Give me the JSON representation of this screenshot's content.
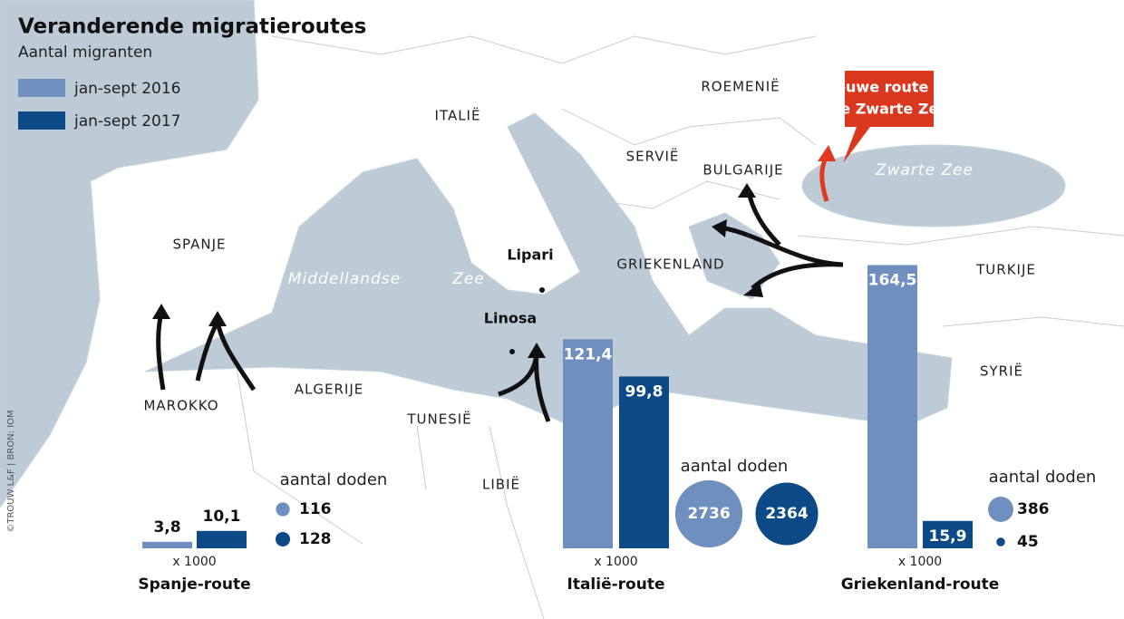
{
  "title": "Veranderende migratieroutes",
  "subtitle": "Aantal migranten",
  "legend": [
    {
      "label": "jan-sept 2016",
      "color": "#6f8fbf"
    },
    {
      "label": "jan-sept 2017",
      "color": "#0b4a87"
    }
  ],
  "deaths_label": "aantal doden",
  "unit_label": "x 1000",
  "routes": [
    {
      "name": "Spanje-route",
      "values": [
        3.8,
        10.1
      ],
      "value_labels": [
        "3,8",
        "10,1"
      ],
      "deaths": [
        116,
        128
      ]
    },
    {
      "name": "Italië-route",
      "values": [
        121.4,
        99.8
      ],
      "value_labels": [
        "121,4",
        "99,8"
      ],
      "deaths": [
        2736,
        2364
      ]
    },
    {
      "name": "Griekenland-route",
      "values": [
        164.5,
        15.9
      ],
      "value_labels": [
        "164,5",
        "15,9"
      ],
      "deaths": [
        386,
        45
      ]
    }
  ],
  "map_labels": [
    "ITALIË",
    "ROEMENIË",
    "SERVIË",
    "BULGARIJE",
    "SPANJE",
    "GRIEKENLAND",
    "TURKIJE",
    "SYRIË",
    "ALGERIJE",
    "MAROKKO",
    "TUNESIË",
    "LIBIË"
  ],
  "sea_labels": [
    "Middellandse",
    "Zee",
    "Zwarte Zee"
  ],
  "islands": [
    "Lipari",
    "Linosa"
  ],
  "callout": [
    "nieuwe route via",
    "de Zwarte Zee"
  ],
  "credit": "©TROUW L&F | BRON: IOM"
}
